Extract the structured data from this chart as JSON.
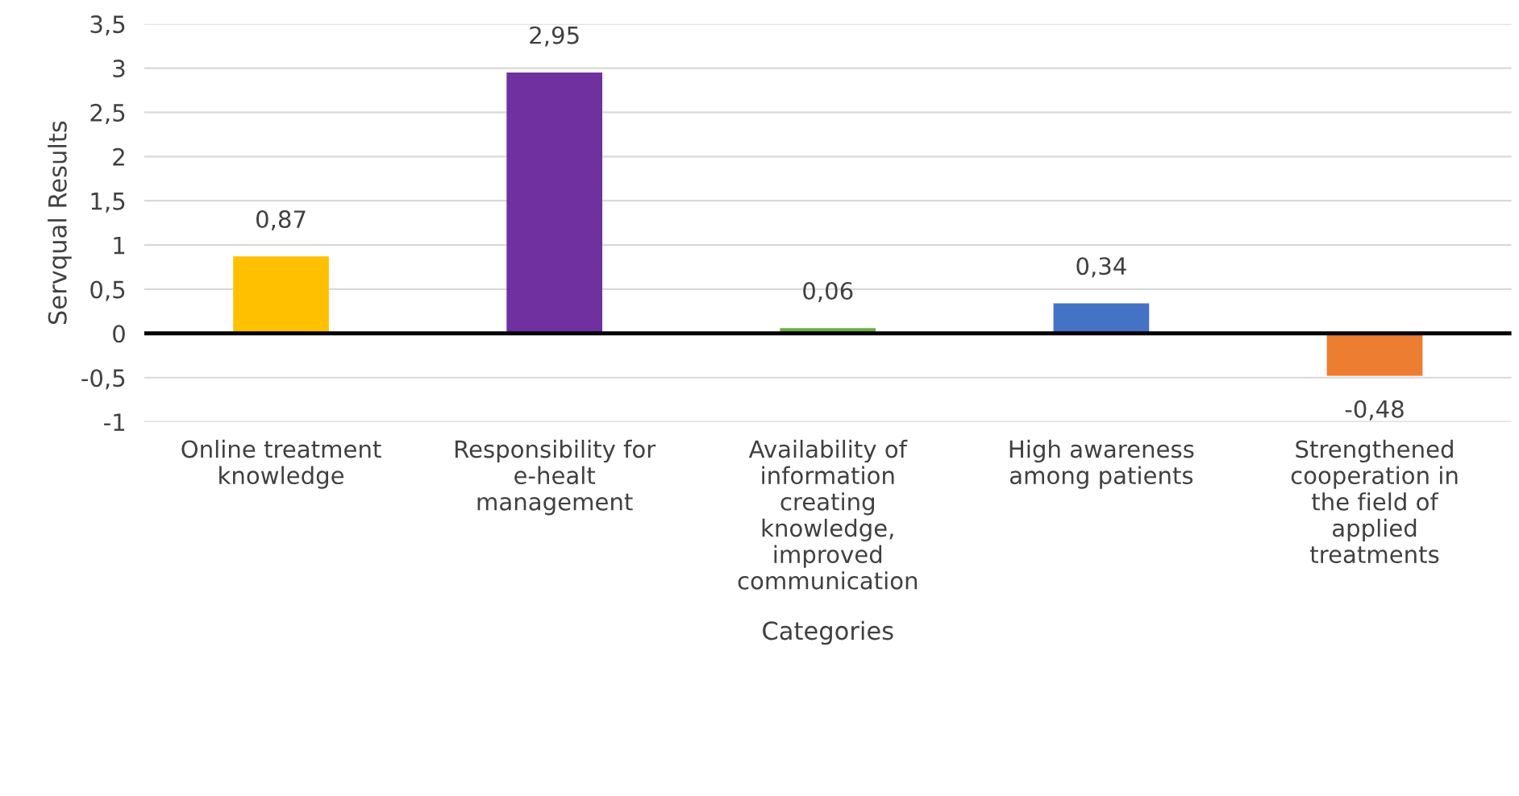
{
  "chart_data": {
    "type": "bar",
    "xlabel": "Categories",
    "ylabel": "Servqual Results",
    "categories": [
      "Online treatment\nknowledge",
      "Responsibility for\ne-healt\nmanagement",
      "Availability of\ninformation\ncreating\nknowledge,\nimproved\ncommunication",
      "High awareness\namong patients",
      "Strengthened\ncooperation in\nthe field of\napplied\ntreatments"
    ],
    "values": [
      0.87,
      2.95,
      0.06,
      0.34,
      -0.48
    ],
    "colors": [
      "#ffc000",
      "#7030a0",
      "#70ad47",
      "#4472c4",
      "#ed7d31"
    ],
    "value_labels": [
      "0,87",
      "2,95",
      "0,06",
      "0,34",
      "-0,48"
    ],
    "ylim": [
      -1,
      3.5
    ],
    "yticks": [
      {
        "value": -1,
        "label": "-1"
      },
      {
        "value": -0.5,
        "label": "-0,5"
      },
      0,
      {
        "value": 0.5,
        "label": "0,5"
      },
      1,
      {
        "value": 1.5,
        "label": "1,5"
      },
      2,
      {
        "value": 2.5,
        "label": "2,5"
      },
      3,
      {
        "value": 3.5,
        "label": "3,5"
      }
    ],
    "grid": "y",
    "legend": false
  }
}
